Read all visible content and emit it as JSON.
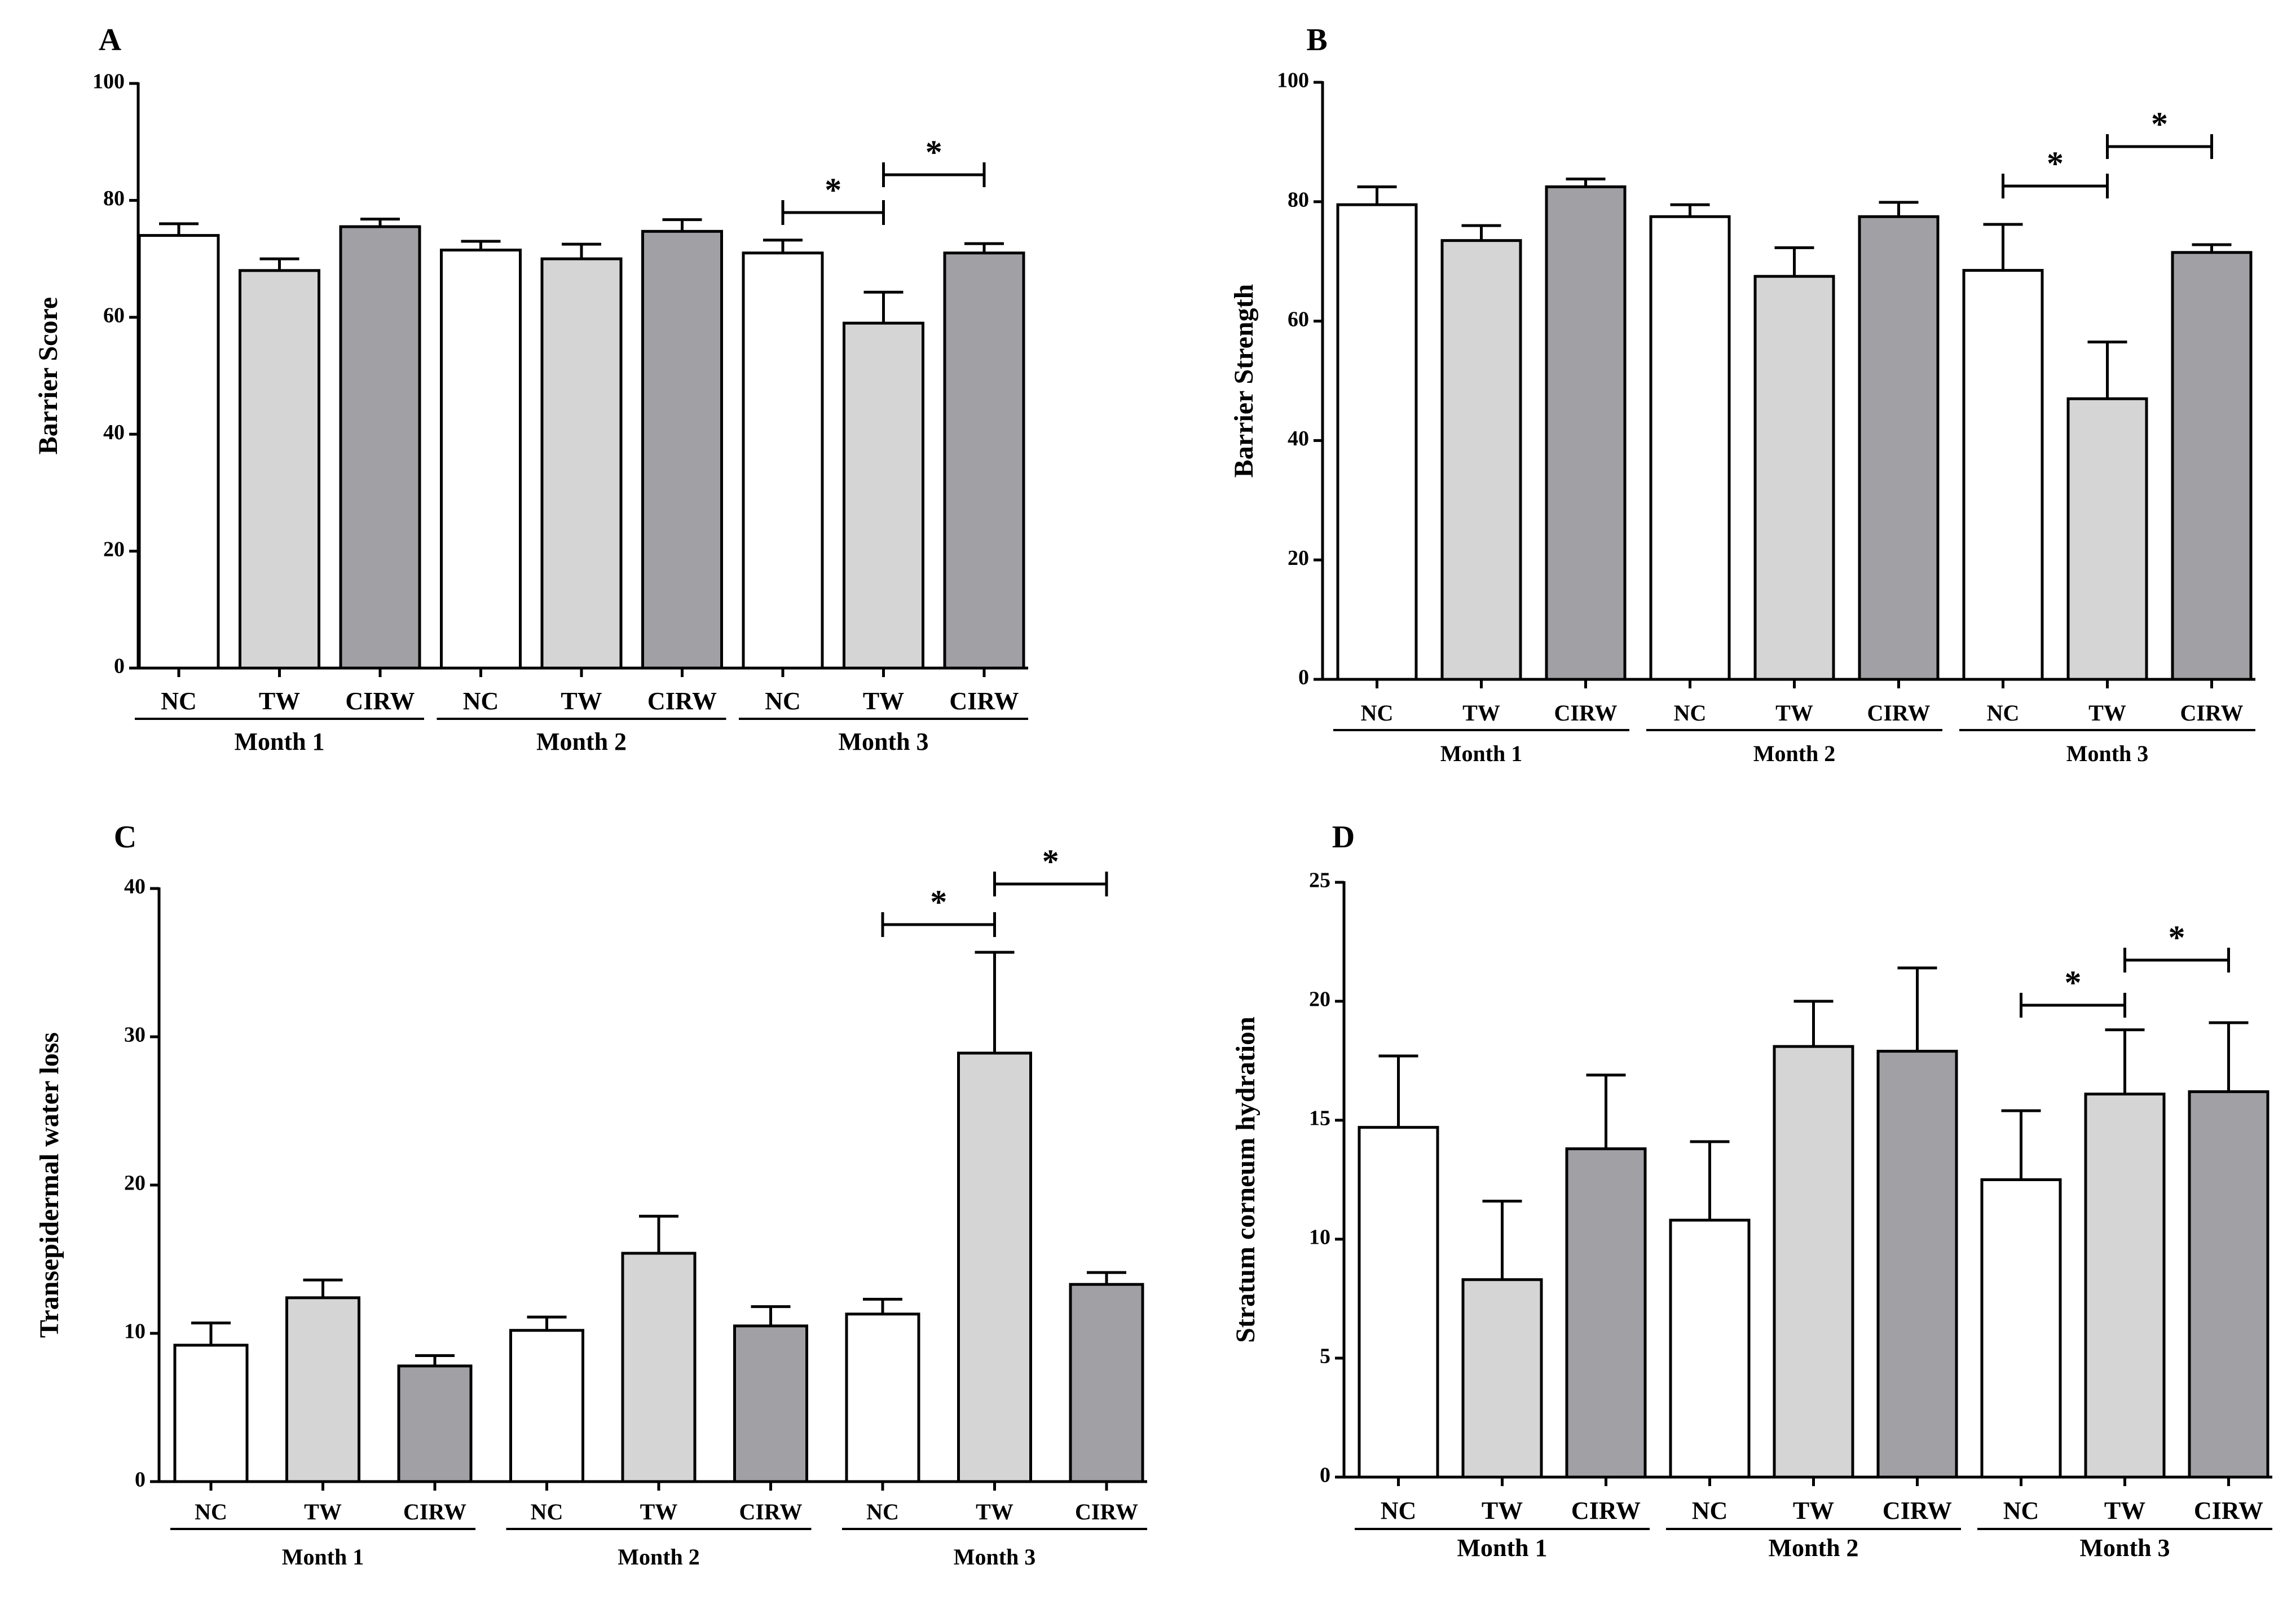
{
  "colors": {
    "NC": "#ffffff",
    "TW": "#d5d5d5",
    "CIRW": "#a1a0a5",
    "stroke": "#000000"
  },
  "chart_data": [
    {
      "panel": "A",
      "type": "bar",
      "ylabel": "Barrier Score",
      "ylim": [
        0,
        100
      ],
      "yticks": [
        0,
        20,
        40,
        60,
        80,
        100
      ],
      "categories": [
        "NC",
        "TW",
        "CIRW",
        "NC",
        "TW",
        "CIRW",
        "NC",
        "TW",
        "CIRW"
      ],
      "groups": [
        "NC",
        "TW",
        "CIRW",
        "NC",
        "TW",
        "CIRW",
        "NC",
        "TW",
        "CIRW"
      ],
      "months": [
        "Month 1",
        "Month 2",
        "Month 3"
      ],
      "values": [
        74,
        68,
        75.5,
        71.5,
        70,
        74.7,
        71,
        59,
        71
      ],
      "errors": [
        2,
        2,
        1.3,
        1.5,
        2.5,
        2,
        2.2,
        5.3,
        1.6
      ],
      "significance": [
        {
          "from": 6,
          "to": 7,
          "label": "*"
        },
        {
          "from": 7,
          "to": 8,
          "label": "*"
        }
      ]
    },
    {
      "panel": "B",
      "type": "bar",
      "ylabel": "Barrier Strength",
      "ylim": [
        0,
        100
      ],
      "yticks": [
        0,
        20,
        40,
        60,
        80,
        100
      ],
      "categories": [
        "NC",
        "TW",
        "CIRW",
        "NC",
        "TW",
        "CIRW",
        "NC",
        "TW",
        "CIRW"
      ],
      "groups": [
        "NC",
        "TW",
        "CIRW",
        "NC",
        "TW",
        "CIRW",
        "NC",
        "TW",
        "CIRW"
      ],
      "months": [
        "Month 1",
        "Month 2",
        "Month 3"
      ],
      "values": [
        79.5,
        73.5,
        82.5,
        77.5,
        67.5,
        77.5,
        68.5,
        47,
        71.5
      ],
      "errors": [
        3,
        2.5,
        1.3,
        2,
        4.8,
        2.4,
        7.7,
        9.5,
        1.3
      ],
      "significance": [
        {
          "from": 6,
          "to": 7,
          "label": "*"
        },
        {
          "from": 7,
          "to": 8,
          "label": "*"
        }
      ]
    },
    {
      "panel": "C",
      "type": "bar",
      "ylabel": "Transepidermal water loss",
      "ylim": [
        0,
        40
      ],
      "yticks": [
        0,
        10,
        20,
        30,
        40
      ],
      "categories": [
        "NC",
        "TW",
        "CIRW",
        "NC",
        "TW",
        "CIRW",
        "NC",
        "TW",
        "CIRW"
      ],
      "groups": [
        "NC",
        "TW",
        "CIRW",
        "NC",
        "TW",
        "CIRW",
        "NC",
        "TW",
        "CIRW"
      ],
      "months": [
        "Month 1",
        "Month 2",
        "Month 3"
      ],
      "values": [
        9.2,
        12.4,
        7.8,
        10.2,
        15.4,
        10.5,
        11.3,
        28.9,
        13.3
      ],
      "errors": [
        1.5,
        1.2,
        0.7,
        0.9,
        2.5,
        1.3,
        1,
        6.8,
        0.8
      ],
      "significance": [
        {
          "from": 6,
          "to": 7,
          "label": "*"
        },
        {
          "from": 7,
          "to": 8,
          "label": "*"
        }
      ]
    },
    {
      "panel": "D",
      "type": "bar",
      "ylabel": "Stratum corneum hydration",
      "ylim": [
        0,
        25
      ],
      "yticks": [
        0,
        5,
        10,
        15,
        20,
        25
      ],
      "categories": [
        "NC",
        "TW",
        "CIRW",
        "NC",
        "TW",
        "CIRW",
        "NC",
        "TW",
        "CIRW"
      ],
      "groups": [
        "NC",
        "TW",
        "CIRW",
        "NC",
        "TW",
        "CIRW",
        "NC",
        "TW",
        "CIRW"
      ],
      "months": [
        "Month 1",
        "Month 2",
        "Month 3"
      ],
      "values": [
        14.7,
        8.3,
        13.8,
        10.8,
        18.1,
        17.9,
        12.5,
        16.1,
        16.2
      ],
      "errors": [
        3,
        3.3,
        3.1,
        3.3,
        1.9,
        3.5,
        2.9,
        2.7,
        2.9
      ],
      "significance": [
        {
          "from": 6,
          "to": 7,
          "label": "*"
        },
        {
          "from": 7,
          "to": 8,
          "label": "*"
        }
      ]
    }
  ]
}
